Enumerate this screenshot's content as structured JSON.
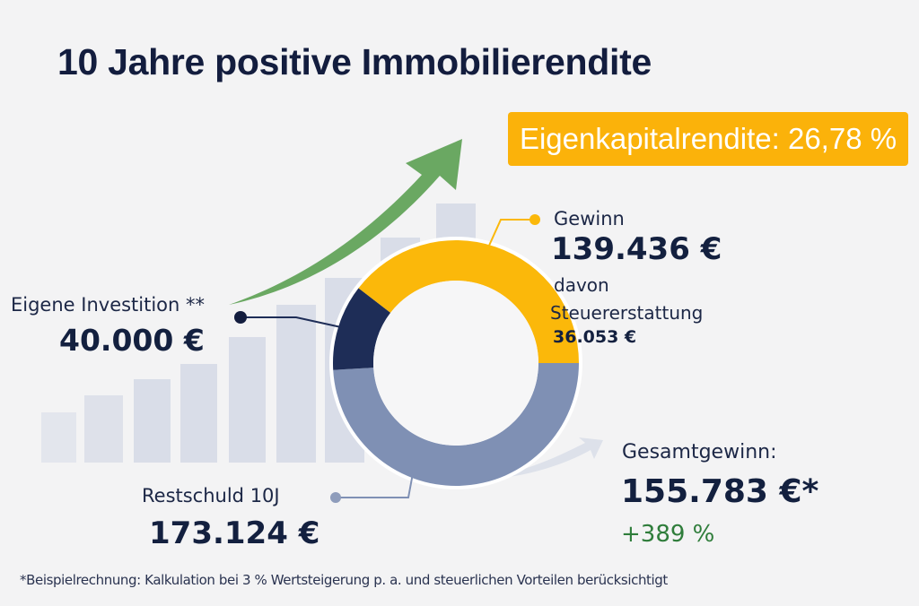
{
  "title": "10 Jahre positive Immobilierendite",
  "badge": {
    "text": "Eigenkapitalrendite: 26,78 %",
    "color": "#fbb20a"
  },
  "gewinn": {
    "label": "Gewinn",
    "value": "139.436 €",
    "sub_label_1": "davon",
    "sub_label_2": "Steuererstattung",
    "sub_value": "36.053 €",
    "color": "#fbb80a"
  },
  "investment": {
    "label": "Eigene Investition **",
    "value": "40.000 €",
    "color": "#1e2d57"
  },
  "restschuld": {
    "label": "Restschuld 10J",
    "value": "173.124 €",
    "color": "#7f90b4"
  },
  "gesamt": {
    "label": "Gesamtgewinn:",
    "value": "155.783 €*",
    "percent": "+389 %",
    "percent_color": "#2f7d3b"
  },
  "donut": {
    "segments": [
      {
        "name": "Gewinn",
        "value": 139436,
        "color": "#fbb80a"
      },
      {
        "name": "Restschuld 10J",
        "value": 173124,
        "color": "#7f90b4"
      },
      {
        "name": "Eigene Investition",
        "value": 40000,
        "color": "#1e2d57"
      }
    ]
  },
  "footnote": "*Beispielrechnung: Kalkulation bei 3 % Wertsteigerung p. a. und steuerlichen Vorteilen berücksichtigt",
  "colors": {
    "arrow_green": "#6aa862",
    "bars": "#d8dce7",
    "title": "#131d3e"
  }
}
